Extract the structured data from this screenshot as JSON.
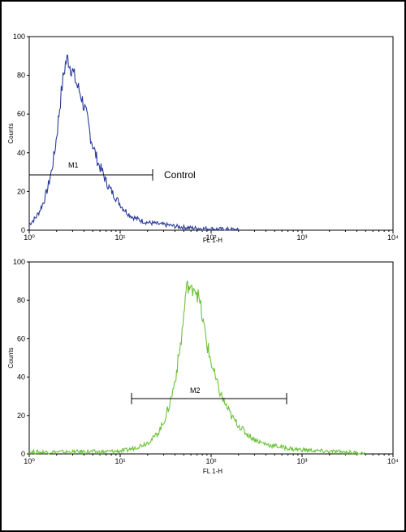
{
  "chart_data": [
    {
      "type": "histogram",
      "title": "",
      "xlabel": "FL 1-H",
      "ylabel": "Counts",
      "x_scale": "log",
      "xlim": [
        1,
        10000
      ],
      "ylim": [
        0,
        100
      ],
      "x_ticks": [
        1,
        10,
        100,
        1000,
        10000
      ],
      "y_ticks": [
        0,
        20,
        40,
        60,
        80,
        100
      ],
      "color": "#2a3b9a",
      "series": [
        {
          "values": [
            [
              1.0,
              3
            ],
            [
              1.1,
              5
            ],
            [
              1.2,
              7
            ],
            [
              1.3,
              10
            ],
            [
              1.45,
              15
            ],
            [
              1.6,
              22
            ],
            [
              1.75,
              30
            ],
            [
              1.9,
              40
            ],
            [
              2.05,
              53
            ],
            [
              2.2,
              67
            ],
            [
              2.35,
              78
            ],
            [
              2.5,
              86
            ],
            [
              2.65,
              89
            ],
            [
              2.8,
              85
            ],
            [
              3.0,
              82
            ],
            [
              3.2,
              78
            ],
            [
              3.4,
              74
            ],
            [
              3.7,
              70
            ],
            [
              4.0,
              64
            ],
            [
              4.4,
              56
            ],
            [
              4.8,
              47
            ],
            [
              5.3,
              40
            ],
            [
              5.8,
              34
            ],
            [
              6.4,
              30
            ],
            [
              7.0,
              25
            ],
            [
              7.8,
              21
            ],
            [
              8.6,
              18
            ],
            [
              9.5,
              15
            ],
            [
              10.5,
              12
            ],
            [
              12,
              9
            ],
            [
              13.5,
              7
            ],
            [
              15,
              6
            ],
            [
              17,
              5
            ],
            [
              20,
              4
            ],
            [
              24,
              3.5
            ],
            [
              28,
              3
            ],
            [
              34,
              2.6
            ],
            [
              40,
              2
            ],
            [
              50,
              1.5
            ],
            [
              60,
              1.2
            ],
            [
              75,
              1
            ],
            [
              95,
              0.8
            ],
            [
              120,
              0.6
            ],
            [
              150,
              0.5
            ],
            [
              180,
              0.4
            ],
            [
              200,
              0
            ]
          ]
        }
      ],
      "annotations": [
        {
          "label": "M1",
          "x_range": [
            1,
            22
          ]
        },
        {
          "label": "Control",
          "x": 30
        }
      ]
    },
    {
      "type": "histogram",
      "title": "",
      "xlabel": "FL 1-H",
      "ylabel": "Counts",
      "x_scale": "log",
      "xlim": [
        1,
        10000
      ],
      "ylim": [
        0,
        100
      ],
      "x_ticks": [
        1,
        10,
        100,
        1000,
        10000
      ],
      "y_ticks": [
        0,
        20,
        40,
        60,
        80,
        100
      ],
      "color": "#6cc23a",
      "series": [
        {
          "values": [
            [
              1.0,
              1
            ],
            [
              1.5,
              1
            ],
            [
              2,
              1
            ],
            [
              3,
              1
            ],
            [
              4,
              1.2
            ],
            [
              6,
              1
            ],
            [
              8,
              1.3
            ],
            [
              10,
              1.5
            ],
            [
              12,
              2
            ],
            [
              14,
              3
            ],
            [
              16,
              4
            ],
            [
              18,
              5
            ],
            [
              20,
              6
            ],
            [
              23,
              8
            ],
            [
              26,
              11
            ],
            [
              29,
              15
            ],
            [
              32,
              20
            ],
            [
              35,
              26
            ],
            [
              38,
              33
            ],
            [
              41,
              41
            ],
            [
              44,
              50
            ],
            [
              47,
              60
            ],
            [
              50,
              72
            ],
            [
              53,
              85
            ],
            [
              56,
              88
            ],
            [
              60,
              84
            ],
            [
              64,
              88
            ],
            [
              68,
              86
            ],
            [
              72,
              82
            ],
            [
              77,
              76
            ],
            [
              82,
              68
            ],
            [
              88,
              60
            ],
            [
              95,
              52
            ],
            [
              105,
              44
            ],
            [
              115,
              37
            ],
            [
              130,
              30
            ],
            [
              150,
              24
            ],
            [
              170,
              19
            ],
            [
              200,
              15
            ],
            [
              240,
              11
            ],
            [
              290,
              8
            ],
            [
              350,
              6
            ],
            [
              450,
              4.5
            ],
            [
              600,
              3.5
            ],
            [
              800,
              2.5
            ],
            [
              1100,
              2
            ],
            [
              1500,
              1.5
            ],
            [
              2000,
              1.2
            ],
            [
              3000,
              1
            ],
            [
              4000,
              0.5
            ],
            [
              5000,
              0
            ]
          ]
        }
      ],
      "annotations": [
        {
          "label": "M2",
          "x_range": [
            13,
            650
          ]
        }
      ]
    }
  ]
}
